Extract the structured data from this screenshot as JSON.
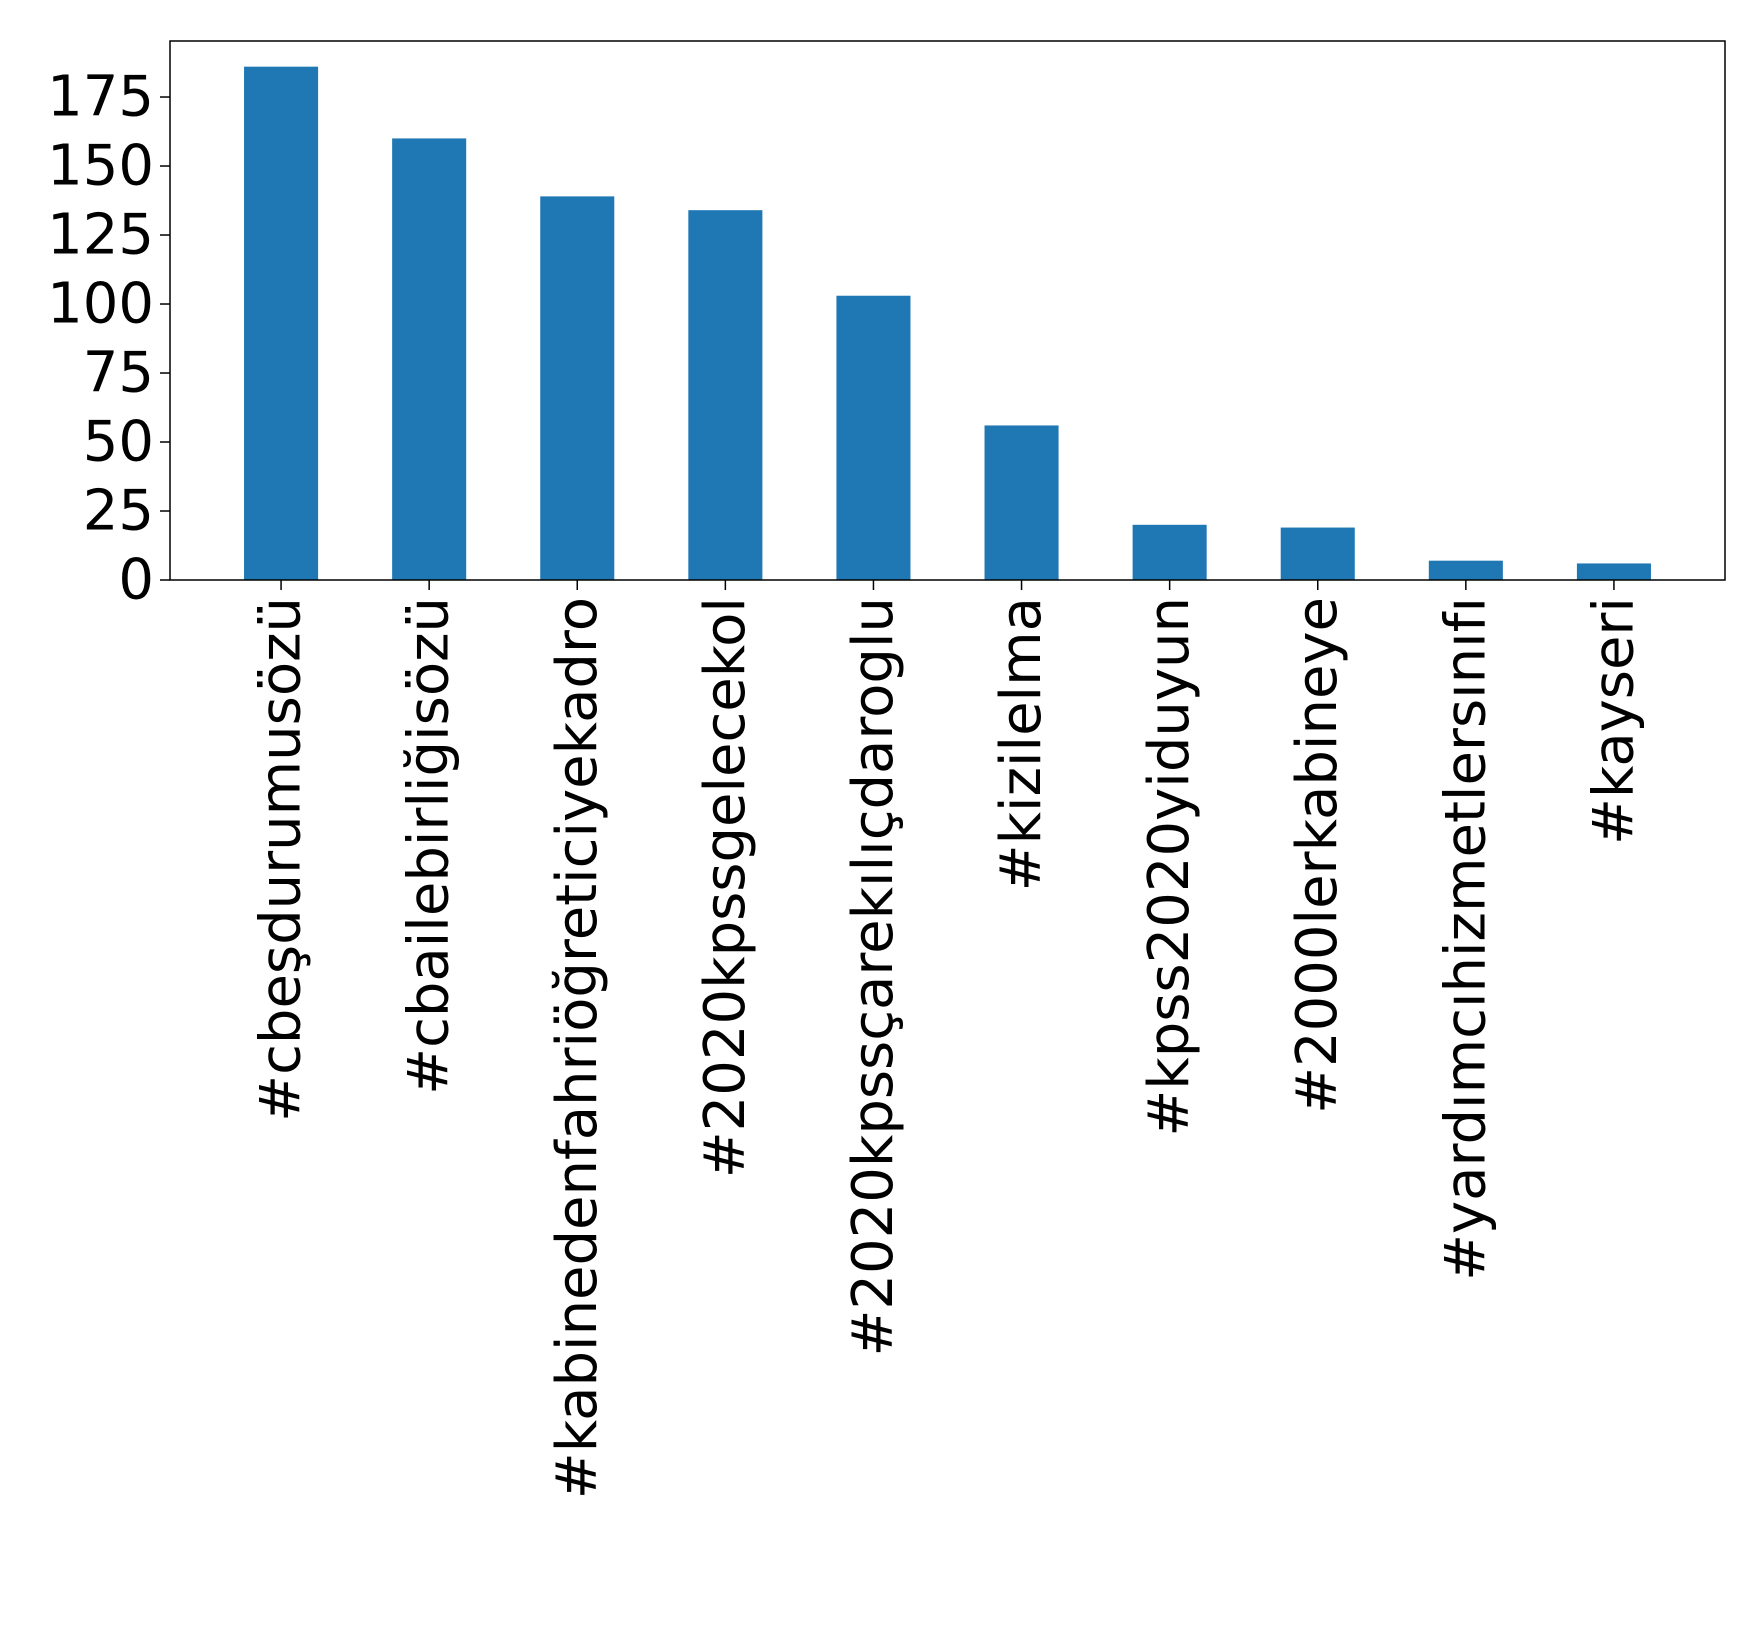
{
  "chart_data": {
    "type": "bar",
    "categories": [
      "#cbeşdurumusözü",
      "#cbailebirliğisözü",
      "#kabinedenfahriöğreticiyekadro",
      "#2020kpssgelecekol",
      "#2020kpssçarekılıçdaroglu",
      "#kizilelma",
      "#kpss2020yiduyun",
      "#2000lerkabineye",
      "#yardımcıhizmetlersınıfı",
      "#kayseri"
    ],
    "values": [
      186,
      160,
      139,
      134,
      103,
      56,
      20,
      19,
      7,
      6
    ],
    "yticks": [
      0,
      25,
      50,
      75,
      100,
      125,
      150,
      175
    ],
    "ylim": [
      0,
      195.3
    ],
    "title": "",
    "xlabel": "",
    "ylabel": "",
    "bar_color": "#1f77b4",
    "grid": false,
    "legend": "none"
  }
}
